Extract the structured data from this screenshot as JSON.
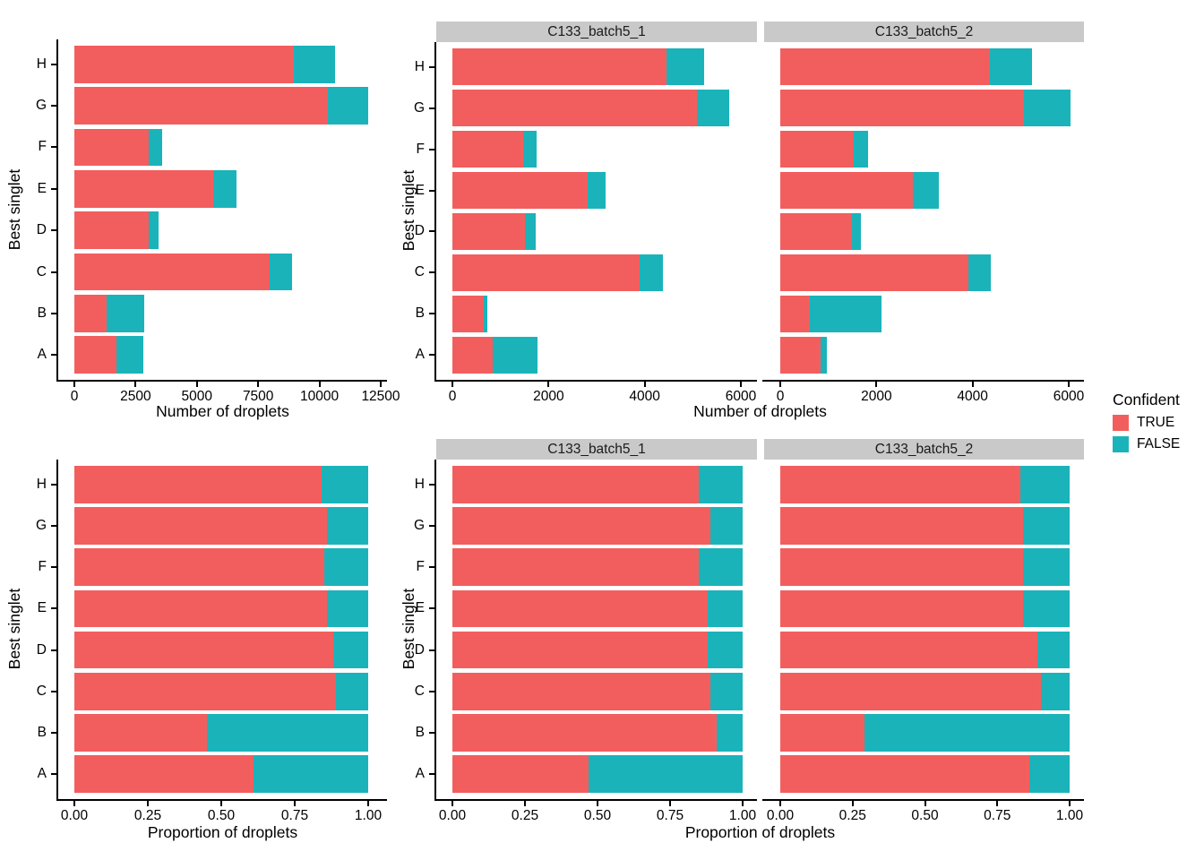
{
  "labels": {
    "x_counts": "Number of droplets",
    "x_prop": "Proportion of droplets",
    "y": "Best singlet"
  },
  "legend": {
    "title": "Confident",
    "items": [
      {
        "label": "TRUE",
        "color": "#F25E5E"
      },
      {
        "label": "FALSE",
        "color": "#1BB3BA"
      }
    ]
  },
  "chart_data": [
    {
      "id": "counts-combined",
      "type": "bar",
      "orientation": "horizontal",
      "stacked": true,
      "facet_label": null,
      "xlabel": "Number of droplets",
      "ylabel": "Best singlet",
      "categories": [
        "H",
        "G",
        "F",
        "E",
        "D",
        "C",
        "B",
        "A"
      ],
      "series": [
        {
          "name": "TRUE",
          "color": "#F25E5E",
          "values": [
            8950,
            10350,
            3050,
            5650,
            3050,
            7950,
            1300,
            1700
          ]
        },
        {
          "name": "FALSE",
          "color": "#1BB3BA",
          "values": [
            1680,
            1630,
            550,
            950,
            400,
            950,
            1560,
            1100
          ]
        }
      ],
      "xlim": [
        0,
        12500
      ],
      "x_tick_values": [
        0,
        2500,
        5000,
        7500,
        10000,
        12500
      ],
      "x_tick_labels": [
        "0",
        "2500",
        "5000",
        "7500",
        "10000",
        "12500"
      ],
      "grid": false,
      "legend_position": "right"
    },
    {
      "id": "counts-batch5-1",
      "type": "bar",
      "orientation": "horizontal",
      "stacked": true,
      "facet_label": "C133_batch5_1",
      "xlabel": "Number of droplets",
      "ylabel": "Best singlet",
      "categories": [
        "H",
        "G",
        "F",
        "E",
        "D",
        "C",
        "B",
        "A"
      ],
      "series": [
        {
          "name": "TRUE",
          "color": "#F25E5E",
          "values": [
            4450,
            5090,
            1480,
            2820,
            1510,
            3900,
            660,
            840
          ]
        },
        {
          "name": "FALSE",
          "color": "#1BB3BA",
          "values": [
            780,
            660,
            270,
            370,
            220,
            480,
            70,
            930
          ]
        }
      ],
      "xlim": [
        0,
        6000
      ],
      "x_tick_values": [
        0,
        2000,
        4000,
        6000
      ],
      "x_tick_labels": [
        "0",
        "2000",
        "4000",
        "6000"
      ],
      "grid": false,
      "legend_position": "right"
    },
    {
      "id": "counts-batch5-2",
      "type": "bar",
      "orientation": "horizontal",
      "stacked": true,
      "facet_label": "C133_batch5_2",
      "xlabel": "Number of droplets",
      "ylabel": "Best singlet",
      "categories": [
        "H",
        "G",
        "F",
        "E",
        "D",
        "C",
        "B",
        "A"
      ],
      "series": [
        {
          "name": "TRUE",
          "color": "#F25E5E",
          "values": [
            4360,
            5070,
            1530,
            2750,
            1490,
            3920,
            610,
            830
          ]
        },
        {
          "name": "FALSE",
          "color": "#1BB3BA",
          "values": [
            880,
            970,
            290,
            550,
            180,
            460,
            1500,
            140
          ]
        }
      ],
      "xlim": [
        0,
        6000
      ],
      "x_tick_values": [
        0,
        2000,
        4000,
        6000
      ],
      "x_tick_labels": [
        "0",
        "2000",
        "4000",
        "6000"
      ],
      "grid": false,
      "legend_position": "right"
    },
    {
      "id": "prop-combined",
      "type": "bar",
      "orientation": "horizontal",
      "stacked": true,
      "facet_label": null,
      "xlabel": "Proportion of droplets",
      "ylabel": "Best singlet",
      "categories": [
        "H",
        "G",
        "F",
        "E",
        "D",
        "C",
        "B",
        "A"
      ],
      "series": [
        {
          "name": "TRUE",
          "color": "#F25E5E",
          "values": [
            0.84,
            0.86,
            0.85,
            0.86,
            0.88,
            0.89,
            0.45,
            0.61
          ]
        },
        {
          "name": "FALSE",
          "color": "#1BB3BA",
          "values": [
            0.16,
            0.14,
            0.15,
            0.14,
            0.12,
            0.11,
            0.55,
            0.39
          ]
        }
      ],
      "xlim": [
        0,
        1.0
      ],
      "x_tick_values": [
        0,
        0.25,
        0.5,
        0.75,
        1.0
      ],
      "x_tick_labels": [
        "0.00",
        "0.25",
        "0.50",
        "0.75",
        "1.00"
      ],
      "grid": false,
      "legend_position": "right"
    },
    {
      "id": "prop-batch5-1",
      "type": "bar",
      "orientation": "horizontal",
      "stacked": true,
      "facet_label": "C133_batch5_1",
      "xlabel": "Proportion of droplets",
      "ylabel": "Best singlet",
      "categories": [
        "H",
        "G",
        "F",
        "E",
        "D",
        "C",
        "B",
        "A"
      ],
      "series": [
        {
          "name": "TRUE",
          "color": "#F25E5E",
          "values": [
            0.85,
            0.89,
            0.85,
            0.88,
            0.88,
            0.89,
            0.91,
            0.47
          ]
        },
        {
          "name": "FALSE",
          "color": "#1BB3BA",
          "values": [
            0.15,
            0.11,
            0.15,
            0.12,
            0.12,
            0.11,
            0.09,
            0.53
          ]
        }
      ],
      "xlim": [
        0,
        1.0
      ],
      "x_tick_values": [
        0,
        0.25,
        0.5,
        0.75,
        1.0
      ],
      "x_tick_labels": [
        "0.00",
        "0.25",
        "0.50",
        "0.75",
        "1.00"
      ],
      "grid": false,
      "legend_position": "right"
    },
    {
      "id": "prop-batch5-2",
      "type": "bar",
      "orientation": "horizontal",
      "stacked": true,
      "facet_label": "C133_batch5_2",
      "xlabel": "Proportion of droplets",
      "ylabel": "Best singlet",
      "categories": [
        "H",
        "G",
        "F",
        "E",
        "D",
        "C",
        "B",
        "A"
      ],
      "series": [
        {
          "name": "TRUE",
          "color": "#F25E5E",
          "values": [
            0.83,
            0.84,
            0.84,
            0.84,
            0.89,
            0.9,
            0.29,
            0.86
          ]
        },
        {
          "name": "FALSE",
          "color": "#1BB3BA",
          "values": [
            0.17,
            0.16,
            0.16,
            0.16,
            0.11,
            0.1,
            0.71,
            0.14
          ]
        }
      ],
      "xlim": [
        0,
        1.0
      ],
      "x_tick_values": [
        0,
        0.25,
        0.5,
        0.75,
        1.0
      ],
      "x_tick_labels": [
        "0.00",
        "0.25",
        "0.50",
        "0.75",
        "1.00"
      ],
      "grid": false,
      "legend_position": "right"
    }
  ]
}
